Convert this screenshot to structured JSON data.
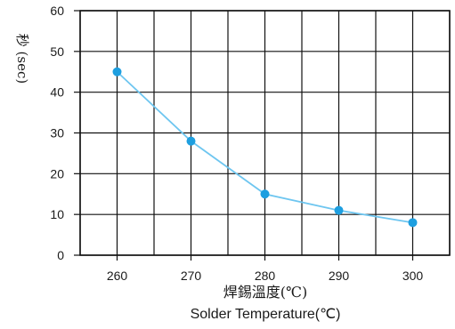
{
  "chart_data": {
    "type": "line",
    "x": [
      260,
      270,
      280,
      290,
      300
    ],
    "series": [
      {
        "values": [
          45,
          28,
          15,
          11,
          8
        ]
      }
    ],
    "xticks": [
      "260",
      "270",
      "280",
      "290",
      "300"
    ],
    "yticks": [
      "0",
      "10",
      "20",
      "30",
      "40",
      "50",
      "60"
    ],
    "xlim": [
      255,
      305
    ],
    "ylim": [
      0,
      60
    ],
    "ylabel": "秒 (sec)",
    "xlabel_cn": "焊錫溫度(℃)",
    "xlabel_en": "Solder  Temperature(℃)",
    "grid": true,
    "colors": {
      "line": "#6ec6f0",
      "marker": "#1e9fe0",
      "grid": "#111111"
    }
  }
}
